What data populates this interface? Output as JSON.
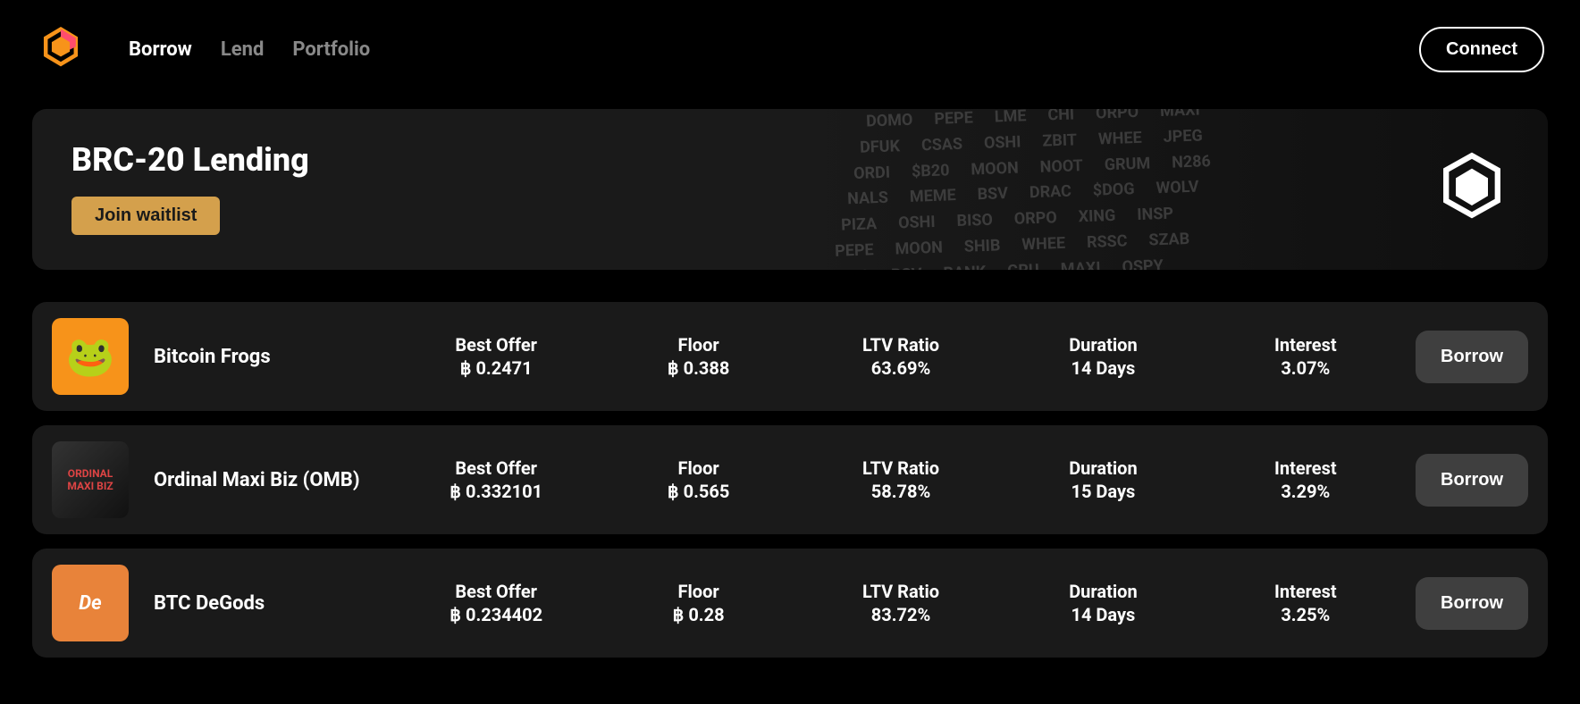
{
  "nav": {
    "items": [
      {
        "label": "Borrow",
        "active": true
      },
      {
        "label": "Lend",
        "active": false
      },
      {
        "label": "Portfolio",
        "active": false
      }
    ],
    "connect_label": "Connect"
  },
  "banner": {
    "title": "BRC-20 Lending",
    "cta_label": "Join waitlist",
    "tickers": [
      [
        "DOMO",
        "PEPE",
        "LME",
        "CHI",
        "ORPO",
        "MAXI"
      ],
      [
        "DFUK",
        "CSAS",
        "OSHI",
        "ZBIT",
        "WHEE",
        "JPEG"
      ],
      [
        "ORDI",
        "$B20",
        "MOON",
        "NOOT",
        "GRUM",
        "N286"
      ],
      [
        "NALS",
        "MEME",
        "BSV",
        "DRAC",
        "$DOG",
        "WOLV"
      ],
      [
        "PIZA",
        "OSHI",
        "BISO",
        "ORPO",
        "XING",
        "INSP"
      ],
      [
        "PEPE",
        "MOON",
        "SHIB",
        "WHEE",
        "RSSC",
        "SZAB"
      ],
      [
        "CSAS",
        "BSV",
        "BANK",
        "GRU",
        "MAXI",
        "OSPY"
      ]
    ]
  },
  "columns": {
    "best_offer": "Best Offer",
    "floor": "Floor",
    "ltv": "LTV Ratio",
    "duration": "Duration",
    "interest": "Interest"
  },
  "action_label": "Borrow",
  "btc_symbol": "฿",
  "collections": [
    {
      "name": "Bitcoin Frogs",
      "best_offer": "0.2471",
      "floor": "0.388",
      "ltv": "63.69%",
      "duration": "14 Days",
      "interest": "3.07%",
      "img_class": "img-frog",
      "img_text": "🐸"
    },
    {
      "name": "Ordinal Maxi Biz (OMB)",
      "best_offer": "0.332101",
      "floor": "0.565",
      "ltv": "58.78%",
      "duration": "15 Days",
      "interest": "3.29%",
      "img_class": "img-omb",
      "img_text": "ORDINAL MAXI BIZ"
    },
    {
      "name": "BTC DeGods",
      "best_offer": "0.234402",
      "floor": "0.28",
      "ltv": "83.72%",
      "duration": "14 Days",
      "interest": "3.25%",
      "img_class": "img-degods",
      "img_text": "De"
    }
  ],
  "colors": {
    "background": "#000000",
    "card_bg": "#1a1a1a",
    "accent": "#d4a04c",
    "text_primary": "#ffffff",
    "text_secondary": "#888888",
    "button_bg": "#3f3f3f"
  }
}
